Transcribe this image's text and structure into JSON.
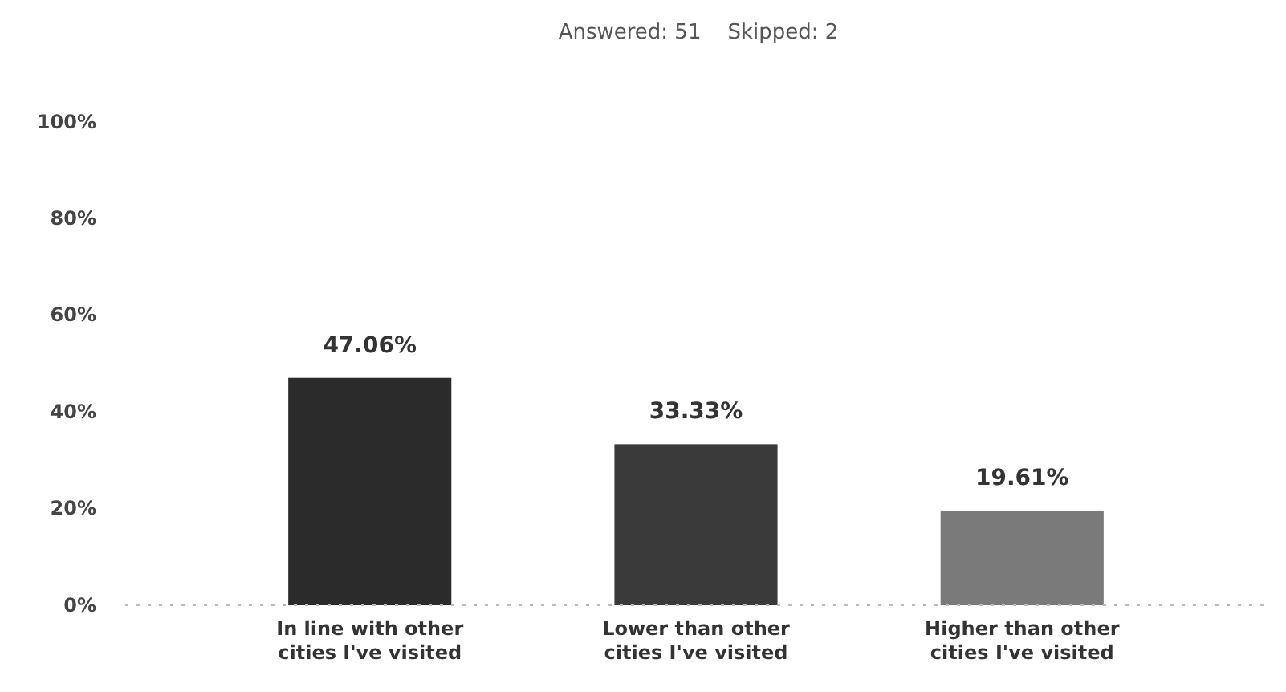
{
  "chart_data": {
    "type": "bar",
    "title": "Answered: 51    Skipped: 2",
    "categories": [
      "In line with other cities I've visited",
      "Lower than other cities I've visited",
      "Higher than other cities I've visited"
    ],
    "values": [
      47.06,
      33.33,
      19.61
    ],
    "colors": [
      "#2b2b2b",
      "#3a3a3a",
      "#7a7a7a"
    ],
    "value_labels": [
      "47.06%",
      "33.33%",
      "19.61%"
    ],
    "ylim": [
      0,
      100
    ],
    "yticks": [
      {
        "value": 0,
        "label": "0%"
      },
      {
        "value": 20,
        "label": "20%"
      },
      {
        "value": 40,
        "label": "40%"
      },
      {
        "value": 60,
        "label": "60%"
      },
      {
        "value": 80,
        "label": "80%"
      },
      {
        "value": 100,
        "label": "100%"
      }
    ],
    "grid": false
  }
}
